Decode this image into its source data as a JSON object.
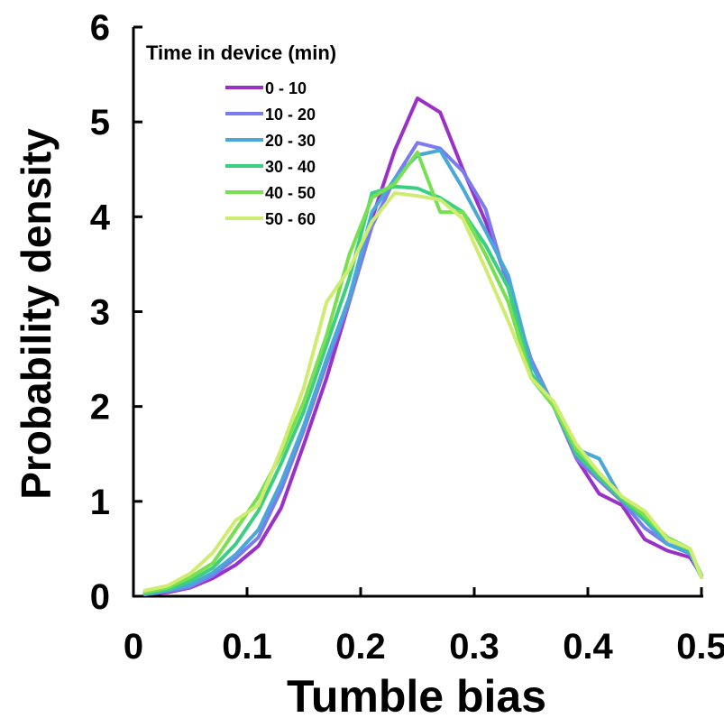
{
  "chart_data": {
    "type": "line",
    "title": "",
    "xlabel": "Tumble bias",
    "ylabel": "Probability density",
    "xlim": [
      0,
      0.5
    ],
    "ylim": [
      0,
      6
    ],
    "x_ticks": [
      0,
      0.1,
      0.2,
      0.3,
      0.4,
      0.5
    ],
    "x_tick_labels": [
      "0",
      "0.1",
      "0.2",
      "0.3",
      "0.4",
      "0.5"
    ],
    "y_ticks": [
      0,
      1,
      2,
      3,
      4,
      5,
      6
    ],
    "y_tick_labels": [
      "0",
      "1",
      "2",
      "3",
      "4",
      "5",
      "6"
    ],
    "grid": false,
    "legend": {
      "title": "Time in device (min)",
      "position": "top-left"
    },
    "x": [
      0.01,
      0.03,
      0.05,
      0.07,
      0.09,
      0.11,
      0.13,
      0.15,
      0.17,
      0.19,
      0.21,
      0.23,
      0.25,
      0.27,
      0.29,
      0.31,
      0.33,
      0.35,
      0.37,
      0.39,
      0.41,
      0.43,
      0.45,
      0.47,
      0.49,
      0.5
    ],
    "series": [
      {
        "name": "0 - 10",
        "color": "#9B30C8",
        "values": [
          0.02,
          0.04,
          0.09,
          0.19,
          0.33,
          0.53,
          0.93,
          1.6,
          2.3,
          3.1,
          3.98,
          4.7,
          5.25,
          5.1,
          4.5,
          3.95,
          3.3,
          2.45,
          2.0,
          1.45,
          1.08,
          0.96,
          0.6,
          0.48,
          0.41,
          0.22
        ]
      },
      {
        "name": "10 - 20",
        "color": "#7B7BF0",
        "values": [
          0.02,
          0.05,
          0.1,
          0.22,
          0.4,
          0.62,
          1.12,
          1.75,
          2.45,
          3.1,
          3.9,
          4.4,
          4.78,
          4.72,
          4.48,
          4.08,
          3.25,
          2.5,
          2.0,
          1.45,
          1.22,
          1.0,
          0.72,
          0.55,
          0.45,
          0.2
        ]
      },
      {
        "name": "20 - 30",
        "color": "#4AA8D8",
        "values": [
          0.02,
          0.06,
          0.12,
          0.25,
          0.44,
          0.7,
          1.2,
          1.8,
          2.5,
          3.15,
          4.05,
          4.4,
          4.65,
          4.7,
          4.3,
          3.85,
          3.38,
          2.45,
          2.0,
          1.55,
          1.45,
          1.02,
          0.8,
          0.55,
          0.45,
          0.2
        ]
      },
      {
        "name": "30 - 40",
        "color": "#3CCF82",
        "values": [
          0.03,
          0.07,
          0.16,
          0.3,
          0.55,
          0.9,
          1.4,
          1.95,
          2.65,
          3.35,
          4.25,
          4.32,
          4.3,
          4.2,
          4.05,
          3.7,
          3.25,
          2.35,
          2.0,
          1.5,
          1.25,
          1.02,
          0.82,
          0.6,
          0.48,
          0.22
        ]
      },
      {
        "name": "40 - 50",
        "color": "#78E050",
        "values": [
          0.04,
          0.09,
          0.2,
          0.35,
          0.7,
          1.05,
          1.5,
          2.05,
          2.75,
          3.6,
          4.2,
          4.35,
          4.68,
          4.05,
          4.05,
          3.6,
          3.1,
          2.3,
          2.0,
          1.55,
          1.3,
          1.05,
          0.85,
          0.62,
          0.5,
          0.2
        ]
      },
      {
        "name": "50 - 60",
        "color": "#D0EC70",
        "values": [
          0.06,
          0.11,
          0.24,
          0.46,
          0.8,
          0.96,
          1.55,
          2.2,
          3.1,
          3.45,
          3.95,
          4.25,
          4.22,
          4.18,
          3.98,
          3.45,
          2.9,
          2.3,
          2.05,
          1.6,
          1.3,
          1.05,
          0.9,
          0.6,
          0.5,
          0.2
        ]
      }
    ]
  }
}
